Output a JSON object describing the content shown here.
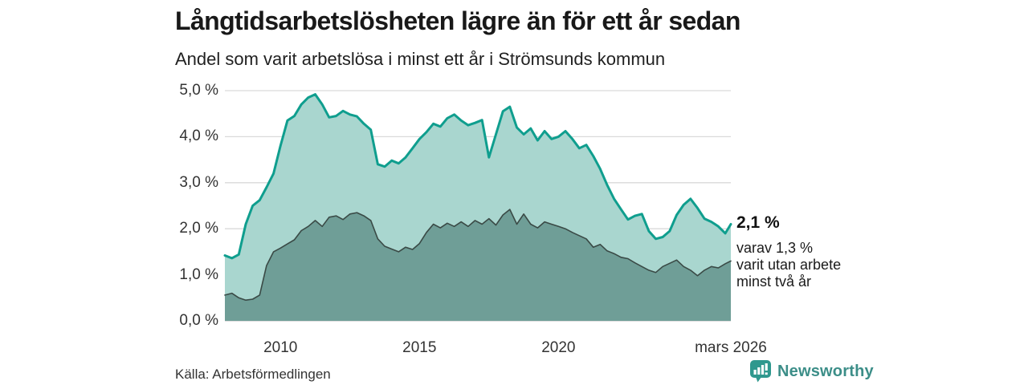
{
  "header": {
    "title": "Långtidsarbetslösheten lägre än för ett år sedan",
    "subtitle": "Andel som varit arbetslösa i minst ett år i Strömsunds kommun"
  },
  "annotation": {
    "total_label": "2,1 %",
    "detail_lines": [
      "varav 1,3 %",
      "varit utan arbete",
      "minst två år"
    ]
  },
  "footer": {
    "source": "Källa: Arbetsförmedlingen",
    "brand": "Newsworthy",
    "brand_icon": "bar-chart-speech-bubble"
  },
  "colors": {
    "line_total": "#0f9e8e",
    "fill_total": "#a9d6cf",
    "line_two_year": "#3a4a46",
    "fill_two_year": "#6f9e97",
    "grid": "#dadada",
    "baseline": "#c9c9c9",
    "brand": "#3c8e88"
  },
  "chart_data": {
    "type": "area",
    "title": "Långtidsarbetslösheten lägre än för ett år sedan",
    "subtitle": "Andel som varit arbetslösa i minst ett år i Strömsunds kommun",
    "unit": "%",
    "xlim": [
      2008,
      2026.2
    ],
    "ylim": [
      0,
      5
    ],
    "grid": "horizontal",
    "legend_position": "right-annotation",
    "x": [
      2008,
      2008.25,
      2008.5,
      2008.75,
      2009,
      2009.25,
      2009.5,
      2009.75,
      2010,
      2010.25,
      2010.5,
      2010.75,
      2011,
      2011.25,
      2011.5,
      2011.75,
      2012,
      2012.25,
      2012.5,
      2012.75,
      2013,
      2013.25,
      2013.5,
      2013.75,
      2014,
      2014.25,
      2014.5,
      2014.75,
      2015,
      2015.25,
      2015.5,
      2015.75,
      2016,
      2016.25,
      2016.5,
      2016.75,
      2017,
      2017.25,
      2017.5,
      2017.75,
      2018,
      2018.25,
      2018.5,
      2018.75,
      2019,
      2019.25,
      2019.5,
      2019.75,
      2020,
      2020.25,
      2020.5,
      2020.75,
      2021,
      2021.25,
      2021.5,
      2021.75,
      2022,
      2022.25,
      2022.5,
      2022.75,
      2023,
      2023.25,
      2023.5,
      2023.75,
      2024,
      2024.25,
      2024.5,
      2024.75,
      2025,
      2025.25,
      2025.5,
      2025.75,
      2026,
      2026.2
    ],
    "series": [
      {
        "name": "Andel arbetslösa minst ett år",
        "color": "#0f9e8e",
        "fill": "#a9d6cf",
        "end_label": "2,1 %",
        "values": [
          1.42,
          1.36,
          1.44,
          2.1,
          2.5,
          2.62,
          2.9,
          3.2,
          3.8,
          4.35,
          4.45,
          4.7,
          4.85,
          4.92,
          4.7,
          4.42,
          4.45,
          4.56,
          4.48,
          4.44,
          4.28,
          4.15,
          3.4,
          3.35,
          3.48,
          3.42,
          3.55,
          3.75,
          3.95,
          4.1,
          4.28,
          4.22,
          4.4,
          4.48,
          4.35,
          4.25,
          4.3,
          4.36,
          3.55,
          4.05,
          4.55,
          4.65,
          4.2,
          4.05,
          4.18,
          3.92,
          4.12,
          3.95,
          4.0,
          4.12,
          3.95,
          3.75,
          3.82,
          3.58,
          3.3,
          2.95,
          2.65,
          2.42,
          2.2,
          2.28,
          2.32,
          1.95,
          1.78,
          1.82,
          1.95,
          2.3,
          2.52,
          2.65,
          2.45,
          2.22,
          2.15,
          2.05,
          1.9,
          2.1
        ]
      },
      {
        "name": "varav utan arbete minst två år",
        "color": "#3a4a46",
        "fill": "#6f9e97",
        "end_label": "1,3 %",
        "values": [
          0.56,
          0.6,
          0.5,
          0.45,
          0.47,
          0.56,
          1.2,
          1.5,
          1.58,
          1.67,
          1.76,
          1.96,
          2.05,
          2.18,
          2.05,
          2.25,
          2.28,
          2.2,
          2.32,
          2.35,
          2.28,
          2.18,
          1.78,
          1.62,
          1.56,
          1.5,
          1.6,
          1.55,
          1.68,
          1.92,
          2.1,
          2.02,
          2.12,
          2.05,
          2.15,
          2.05,
          2.18,
          2.1,
          2.22,
          2.08,
          2.3,
          2.42,
          2.1,
          2.32,
          2.1,
          2.02,
          2.15,
          2.1,
          2.05,
          2.0,
          1.92,
          1.85,
          1.78,
          1.6,
          1.66,
          1.52,
          1.46,
          1.38,
          1.35,
          1.26,
          1.18,
          1.1,
          1.05,
          1.18,
          1.25,
          1.32,
          1.18,
          1.1,
          0.98,
          1.1,
          1.18,
          1.15,
          1.24,
          1.3
        ]
      }
    ],
    "y_ticks": [
      {
        "value": 0,
        "label": "0,0 %"
      },
      {
        "value": 1,
        "label": "1,0 %"
      },
      {
        "value": 2,
        "label": "2,0 %"
      },
      {
        "value": 3,
        "label": "3,0 %"
      },
      {
        "value": 4,
        "label": "4,0 %"
      },
      {
        "value": 5,
        "label": "5,0 %"
      }
    ],
    "x_ticks": [
      {
        "value": 2010,
        "label": "2010"
      },
      {
        "value": 2015,
        "label": "2015"
      },
      {
        "value": 2020,
        "label": "2020"
      },
      {
        "value": 2026.2,
        "label": "mars 2026"
      }
    ]
  }
}
